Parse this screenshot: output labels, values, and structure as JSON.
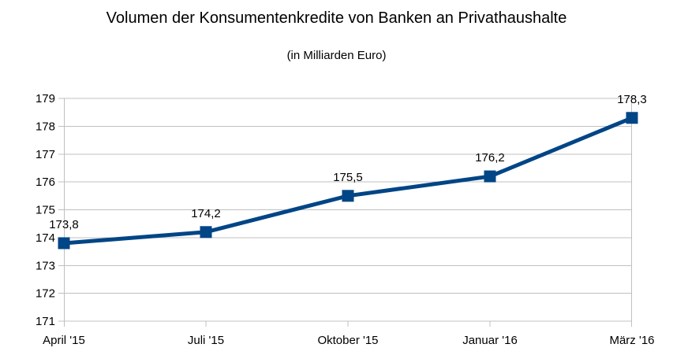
{
  "chart_data": {
    "type": "line",
    "title": "Volumen der Konsumentenkredite von Banken an Privathaushalte",
    "subtitle": "(in Milliarden Euro)",
    "categories": [
      "April '15",
      "Juli '15",
      "Oktober '15",
      "Januar '16",
      "März '16"
    ],
    "values": [
      173.8,
      174.2,
      175.5,
      176.2,
      178.3
    ],
    "value_labels": [
      "173,8",
      "174,2",
      "175,5",
      "176,2",
      "178,3"
    ],
    "xlabel": "",
    "ylabel": "",
    "ylim": [
      171,
      179
    ],
    "yticks": [
      171,
      172,
      173,
      174,
      175,
      176,
      177,
      178,
      179
    ],
    "grid": "horizontal",
    "legend": "none",
    "marker": "square",
    "colors": {
      "line": "#004586",
      "grid": "#c0c0c0",
      "axis": "#c0c0c0",
      "text": "#000000",
      "background": "#ffffff"
    }
  }
}
